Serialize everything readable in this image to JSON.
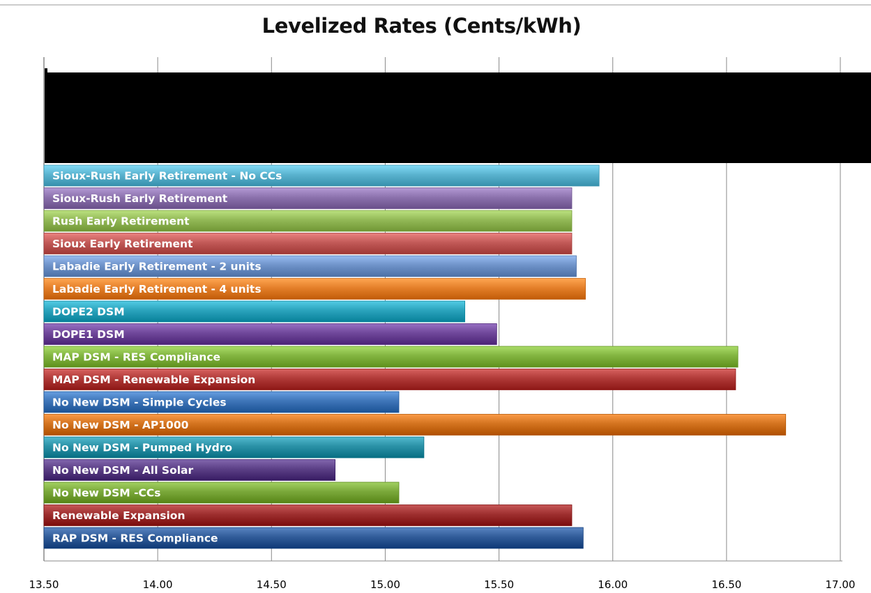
{
  "chart_data": {
    "type": "bar",
    "orientation": "horizontal",
    "title": "Levelized Rates (Cents/kWh)",
    "xlabel": "",
    "ylabel": "",
    "xlim": [
      13.5,
      17.0
    ],
    "x_ticks": [
      "13.50",
      "14.00",
      "14.50",
      "15.00",
      "15.50",
      "16.00",
      "16.50",
      "17.00"
    ],
    "grid": "vertical major gridlines",
    "legend": "none",
    "redacted_region": "black box covering bars above the visible list",
    "categories": [
      "Sioux-Rush Early Retirement - No CCs",
      "Sioux-Rush Early Retirement",
      "Rush Early Retirement",
      "Sioux Early Retirement",
      "Labadie Early Retirement - 2 units",
      "Labadie Early Retirement - 4 units",
      "DOPE2 DSM",
      "DOPE1 DSM",
      "MAP DSM - RES Compliance",
      "MAP DSM - Renewable Expansion",
      "No New DSM - Simple Cycles",
      "No New DSM - AP1000",
      "No New DSM - Pumped Hydro",
      "No New DSM - All Solar",
      "No New DSM -CCs",
      "Renewable Expansion",
      "RAP DSM - RES Compliance"
    ],
    "values": [
      15.94,
      15.82,
      15.82,
      15.82,
      15.84,
      15.88,
      15.35,
      15.49,
      16.55,
      16.54,
      15.06,
      16.76,
      15.17,
      14.78,
      15.06,
      15.82,
      15.87
    ],
    "colors": [
      "#5ab3cf",
      "#8c72ad",
      "#93b957",
      "#c25a58",
      "#6f93c9",
      "#e47f2a",
      "#2aa3bc",
      "#6f479a",
      "#82b440",
      "#b03a38",
      "#3e75b8",
      "#d3731f",
      "#2a91a6",
      "#5b3f86",
      "#7aa83a",
      "#9e2f2f",
      "#315c99"
    ]
  }
}
